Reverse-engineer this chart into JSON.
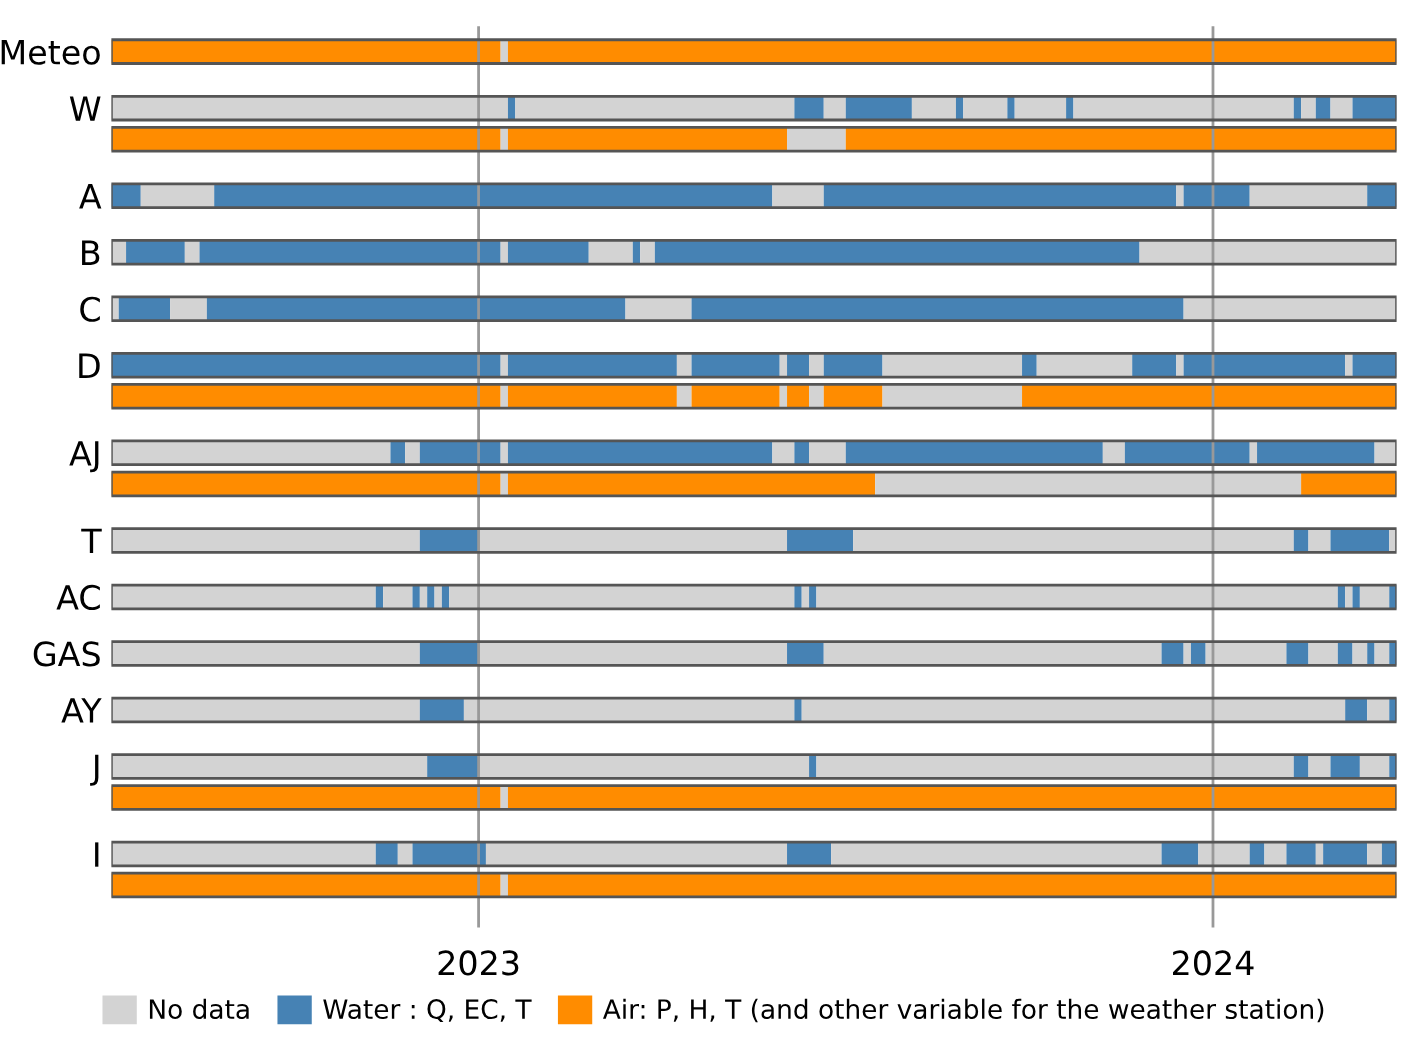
{
  "chart_data": {
    "type": "bar",
    "orientation": "horizontal",
    "categories": [
      "Meteo",
      "W",
      null,
      "A",
      "B",
      "C",
      "D",
      null,
      "AJ",
      null,
      "T",
      "AC",
      "GAS",
      "AY",
      "J",
      null,
      "I",
      null
    ],
    "xlim": [
      2022.5,
      2024.25
    ],
    "xticks": [
      2023,
      2024
    ],
    "grid": "x",
    "legend": "bottom",
    "series": [
      {
        "name": "No data",
        "color": "#d3d3d3",
        "values": [
          null,
          null,
          null,
          null,
          null,
          null,
          null,
          null,
          null,
          null,
          null,
          null,
          null,
          null,
          null,
          null,
          null,
          null
        ]
      },
      {
        "name": "Water : Q, EC, T",
        "color": "#4682b4",
        "values": [
          null,
          null,
          null,
          null,
          null,
          null,
          null,
          null,
          null,
          null,
          null,
          null,
          null,
          null,
          null,
          null,
          null,
          null
        ]
      },
      {
        "name": "Air: P, H, T (and other variable for the weather station)",
        "color": "#ff8c00",
        "values": [
          null,
          null,
          null,
          null,
          null,
          null,
          null,
          null,
          null,
          null,
          null,
          null,
          null,
          null,
          null,
          null,
          null,
          null
        ]
      },
      {
        "base": [
          2022.5,
          2022.5,
          2022.5,
          2022.5,
          2022.5,
          2022.5,
          2022.5,
          2022.5,
          2022.5,
          2022.5,
          2022.5,
          2022.5,
          2022.5,
          2022.5,
          2022.5,
          2022.5,
          2022.5,
          2022.5
        ],
        "values": [
          0.53,
          0.54,
          0.53,
          0.04,
          0.02,
          0.01,
          0.53,
          0.53,
          0.38,
          0.53,
          0.42,
          0.36,
          0.42,
          0.42,
          0.43,
          0.53,
          0.36,
          0.53
        ],
        "colors": [
          "#ff8c00",
          "#d3d3d3",
          "#ff8c00",
          "#4682b4",
          "#d3d3d3",
          "#d3d3d3",
          "#4682b4",
          "#ff8c00",
          "#d3d3d3",
          "#ff8c00",
          "#d3d3d3",
          "#d3d3d3",
          "#d3d3d3",
          "#d3d3d3",
          "#d3d3d3",
          "#ff8c00",
          "#d3d3d3",
          "#ff8c00"
        ]
      },
      {
        "base": [
          2023.03,
          2023.04,
          2023.03,
          2022.54,
          2022.52,
          2022.51,
          2023.03,
          2023.03,
          2022.88,
          2023.03,
          2022.92,
          2022.86,
          2022.92,
          2022.92,
          2022.93,
          2023.03,
          2022.86,
          2023.03
        ],
        "values": [
          0.01,
          0.01,
          0.01,
          0.1,
          0.08,
          0.07,
          0.01,
          0.01,
          0.02,
          0.01,
          0.08,
          0.01,
          0.08,
          0.06,
          0.07,
          0.01,
          0.03,
          0.01
        ],
        "colors": [
          "#d3d3d3",
          "#4682b4",
          "#d3d3d3",
          "#d3d3d3",
          "#4682b4",
          "#4682b4",
          "#d3d3d3",
          "#d3d3d3",
          "#4682b4",
          "#d3d3d3",
          "#4682b4",
          "#4682b4",
          "#4682b4",
          "#4682b4",
          "#4682b4",
          "#d3d3d3",
          "#4682b4",
          "#d3d3d3"
        ]
      },
      {
        "base": [
          2023.04,
          2023.05,
          2023.04,
          2022.64,
          2022.6,
          2022.58,
          2023.04,
          2023.04,
          2022.9,
          2023.04,
          2023.0,
          2022.87,
          2023.0,
          2022.98,
          2023.0,
          2023.04,
          2022.89,
          2023.04
        ],
        "values": [
          1.21,
          0.38,
          0.38,
          0.76,
          0.02,
          0.05,
          0.23,
          0.23,
          0.02,
          0.5,
          0.42,
          0.04,
          0.42,
          0.45,
          0.45,
          1.21,
          0.02,
          1.21
        ],
        "colors": [
          "#ff8c00",
          "#d3d3d3",
          "#ff8c00",
          "#4682b4",
          "#d3d3d3",
          "#d3d3d3",
          "#4682b4",
          "#ff8c00",
          "#d3d3d3",
          "#ff8c00",
          "#d3d3d3",
          "#d3d3d3",
          "#d3d3d3",
          "#d3d3d3",
          "#d3d3d3",
          "#ff8c00",
          "#d3d3d3",
          "#ff8c00"
        ]
      },
      {
        "base": [
          null,
          2023.43,
          2023.42,
          2023.4,
          2022.62,
          2022.63,
          2023.27,
          2023.27,
          2022.92,
          2023.54,
          2023.42,
          2022.91,
          2023.42,
          2023.43,
          2023.45,
          null,
          2022.91,
          null
        ],
        "values": [
          null,
          0.04,
          0.08,
          0.07,
          0.41,
          0.57,
          0.02,
          0.02,
          0.11,
          0.58,
          0.09,
          0.01,
          0.05,
          0.01,
          0.01,
          null,
          0.1,
          null
        ],
        "colors": [
          null,
          "#4682b4",
          "#d3d3d3",
          "#d3d3d3",
          "#4682b4",
          "#4682b4",
          "#d3d3d3",
          "#d3d3d3",
          "#4682b4",
          "#d3d3d3",
          "#4682b4",
          "#4682b4",
          "#4682b4",
          "#4682b4",
          "#4682b4",
          null,
          "#4682b4",
          null
        ]
      },
      {
        "base": [
          null,
          2023.47,
          2023.5,
          2023.47,
          2023.03,
          2023.2,
          2023.29,
          2023.29,
          2023.03,
          2024.12,
          2023.51,
          2022.92,
          2023.47,
          2023.44,
          2023.46,
          null,
          2023.01,
          null
        ],
        "values": [
          null,
          0.03,
          0.75,
          0.48,
          0.01,
          0.09,
          0.12,
          0.12,
          0.01,
          0.13,
          0.6,
          0.01,
          0.46,
          0.74,
          0.65,
          null,
          0.41,
          null
        ],
        "colors": [
          null,
          "#d3d3d3",
          "#ff8c00",
          "#4682b4",
          "#d3d3d3",
          "#d3d3d3",
          "#4682b4",
          "#ff8c00",
          "#d3d3d3",
          "#ff8c00",
          "#d3d3d3",
          "#d3d3d3",
          "#d3d3d3",
          "#d3d3d3",
          "#d3d3d3",
          null,
          "#d3d3d3",
          null
        ]
      },
      {
        "base": [
          null,
          2023.5,
          null,
          2023.95,
          2023.04,
          2023.29,
          2023.41,
          2023.41,
          2023.04,
          null,
          2024.11,
          2022.93,
          2023.93,
          2024.18,
          2024.11,
          null,
          2023.42,
          null
        ],
        "values": [
          null,
          0.09,
          null,
          0.01,
          0.11,
          0.67,
          0.01,
          0.01,
          0.36,
          null,
          0.02,
          0.01,
          0.03,
          0.03,
          0.02,
          null,
          0.06,
          null
        ],
        "colors": [
          null,
          "#4682b4",
          null,
          "#d3d3d3",
          "#4682b4",
          "#4682b4",
          "#d3d3d3",
          "#d3d3d3",
          "#4682b4",
          null,
          "#4682b4",
          "#4682b4",
          "#4682b4",
          "#4682b4",
          "#4682b4",
          null,
          "#4682b4",
          null
        ]
      },
      {
        "base": [
          null,
          2023.59,
          null,
          2023.96,
          2023.15,
          2023.96,
          2023.42,
          2023.42,
          2023.4,
          null,
          2024.13,
          2022.94,
          2023.96,
          2024.21,
          2024.13,
          null,
          2023.48,
          null
        ],
        "values": [
          null,
          0.06,
          null,
          0.09,
          0.06,
          0.29,
          0.03,
          0.03,
          0.03,
          null,
          0.03,
          0.01,
          0.01,
          0.03,
          0.03,
          null,
          0.45,
          null
        ],
        "colors": [
          null,
          "#d3d3d3",
          null,
          "#4682b4",
          "#d3d3d3",
          "#d3d3d3",
          "#4682b4",
          "#ff8c00",
          "#d3d3d3",
          null,
          "#d3d3d3",
          "#d3d3d3",
          "#d3d3d3",
          "#d3d3d3",
          "#d3d3d3",
          null,
          "#d3d3d3",
          null
        ]
      },
      {
        "base": [
          null,
          2023.65,
          null,
          2024.05,
          2023.21,
          null,
          2023.45,
          2023.45,
          2023.43,
          null,
          2024.16,
          2022.95,
          2023.97,
          2024.24,
          2024.16,
          null,
          2023.93,
          null
        ],
        "values": [
          null,
          0.01,
          null,
          0.16,
          0.01,
          null,
          0.02,
          0.02,
          0.02,
          null,
          0.08,
          0.01,
          0.02,
          0.01,
          0.04,
          null,
          0.05,
          null
        ],
        "colors": [
          null,
          "#4682b4",
          null,
          "#d3d3d3",
          "#4682b4",
          null,
          "#d3d3d3",
          "#d3d3d3",
          "#4682b4",
          null,
          "#4682b4",
          "#4682b4",
          "#4682b4",
          "#4682b4",
          "#4682b4",
          null,
          "#4682b4",
          null
        ]
      },
      {
        "base": [
          null,
          2023.66,
          null,
          2024.21,
          2023.22,
          null,
          2023.47,
          2023.47,
          2023.45,
          null,
          2024.24,
          2022.96,
          2023.99,
          null,
          2024.2,
          null,
          2023.98,
          null
        ],
        "values": [
          null,
          0.06,
          null,
          0.04,
          0.02,
          null,
          0.08,
          0.08,
          0.05,
          null,
          0.01,
          0.47,
          0.11,
          null,
          0.04,
          null,
          0.07,
          null
        ],
        "colors": [
          null,
          "#d3d3d3",
          null,
          "#4682b4",
          "#d3d3d3",
          null,
          "#4682b4",
          "#ff8c00",
          "#d3d3d3",
          null,
          "#d3d3d3",
          "#d3d3d3",
          "#d3d3d3",
          null,
          "#d3d3d3",
          null,
          "#d3d3d3",
          null
        ]
      },
      {
        "base": [
          null,
          2023.72,
          null,
          null,
          2023.24,
          null,
          2023.55,
          2023.55,
          2023.5,
          null,
          null,
          2023.43,
          2024.1,
          null,
          2024.24,
          null,
          2024.05,
          null
        ],
        "values": [
          null,
          0.01,
          null,
          null,
          0.66,
          null,
          0.19,
          0.19,
          0.35,
          null,
          null,
          0.01,
          0.03,
          null,
          0.01,
          null,
          0.02,
          null
        ],
        "colors": [
          null,
          "#4682b4",
          null,
          null,
          "#4682b4",
          null,
          "#d3d3d3",
          "#d3d3d3",
          "#4682b4",
          null,
          null,
          "#4682b4",
          "#4682b4",
          null,
          "#4682b4",
          null,
          "#4682b4",
          null
        ]
      },
      {
        "base": [
          null,
          2023.73,
          null,
          null,
          2023.9,
          null,
          2023.74,
          2023.74,
          2023.85,
          null,
          null,
          2023.44,
          2024.13,
          null,
          null,
          null,
          2024.07,
          null
        ],
        "values": [
          null,
          0.07,
          null,
          null,
          0.35,
          null,
          0.02,
          0.51,
          0.03,
          null,
          null,
          0.01,
          0.04,
          null,
          null,
          null,
          0.03,
          null
        ],
        "colors": [
          null,
          "#d3d3d3",
          null,
          null,
          "#d3d3d3",
          null,
          "#4682b4",
          "#ff8c00",
          "#d3d3d3",
          null,
          null,
          "#d3d3d3",
          "#d3d3d3",
          null,
          null,
          null,
          "#d3d3d3",
          null
        ]
      },
      {
        "base": [
          null,
          2023.8,
          null,
          null,
          null,
          null,
          2023.76,
          null,
          2023.88,
          null,
          null,
          2023.45,
          2024.17,
          null,
          null,
          null,
          2024.1,
          null
        ],
        "values": [
          null,
          0.01,
          null,
          null,
          null,
          null,
          0.13,
          null,
          0.17,
          null,
          null,
          0.01,
          0.02,
          null,
          null,
          null,
          0.04,
          null
        ],
        "colors": [
          null,
          "#4682b4",
          null,
          null,
          null,
          null,
          "#d3d3d3",
          null,
          "#4682b4",
          null,
          null,
          "#4682b4",
          "#4682b4",
          null,
          null,
          null,
          "#4682b4",
          null
        ]
      },
      {
        "base": [
          null,
          2023.81,
          null,
          null,
          null,
          null,
          2023.89,
          null,
          2024.05,
          null,
          null,
          2023.46,
          2024.19,
          null,
          null,
          null,
          2024.14,
          null
        ],
        "values": [
          null,
          0.3,
          null,
          null,
          null,
          null,
          0.06,
          null,
          0.01,
          null,
          null,
          0.71,
          0.02,
          null,
          null,
          null,
          0.01,
          null
        ],
        "colors": [
          null,
          "#d3d3d3",
          null,
          null,
          null,
          null,
          "#4682b4",
          null,
          "#d3d3d3",
          null,
          null,
          "#d3d3d3",
          "#d3d3d3",
          null,
          null,
          null,
          "#d3d3d3",
          null
        ]
      },
      {
        "base": [
          null,
          2024.11,
          null,
          null,
          null,
          null,
          2023.95,
          null,
          2024.06,
          null,
          null,
          2024.17,
          2024.21,
          null,
          null,
          null,
          2024.15,
          null
        ],
        "values": [
          null,
          0.01,
          null,
          null,
          null,
          null,
          0.01,
          null,
          0.16,
          null,
          null,
          0.01,
          0.01,
          null,
          null,
          null,
          0.06,
          null
        ],
        "colors": [
          null,
          "#4682b4",
          null,
          null,
          null,
          null,
          "#d3d3d3",
          null,
          "#4682b4",
          null,
          null,
          "#4682b4",
          "#4682b4",
          null,
          null,
          null,
          "#4682b4",
          null
        ]
      },
      {
        "base": [
          null,
          2024.12,
          null,
          null,
          null,
          null,
          2023.96,
          null,
          2024.22,
          null,
          null,
          2024.18,
          2024.22,
          null,
          null,
          null,
          2024.21,
          null
        ],
        "values": [
          null,
          0.02,
          null,
          null,
          null,
          null,
          0.22,
          null,
          0.03,
          null,
          null,
          0.01,
          0.02,
          null,
          null,
          null,
          0.02,
          null
        ],
        "colors": [
          null,
          "#d3d3d3",
          null,
          null,
          null,
          null,
          "#4682b4",
          null,
          "#d3d3d3",
          null,
          null,
          "#d3d3d3",
          "#d3d3d3",
          null,
          null,
          null,
          "#d3d3d3",
          null
        ]
      },
      {
        "base": [
          null,
          2024.14,
          null,
          null,
          null,
          null,
          2024.18,
          null,
          null,
          null,
          null,
          2024.19,
          2024.24,
          null,
          null,
          null,
          2024.23,
          null
        ],
        "values": [
          null,
          0.02,
          null,
          null,
          null,
          null,
          0.01,
          null,
          null,
          null,
          null,
          0.01,
          0.01,
          null,
          null,
          null,
          0.02,
          null
        ],
        "colors": [
          null,
          "#4682b4",
          null,
          null,
          null,
          null,
          "#d3d3d3",
          null,
          null,
          null,
          null,
          "#4682b4",
          "#4682b4",
          null,
          null,
          null,
          "#4682b4",
          null
        ]
      },
      {
        "base": [
          null,
          2024.16,
          null,
          null,
          null,
          null,
          2024.19,
          null,
          null,
          null,
          null,
          2024.2,
          null,
          null,
          null,
          null,
          null,
          null
        ],
        "values": [
          null,
          0.03,
          null,
          null,
          null,
          null,
          0.06,
          null,
          null,
          null,
          null,
          0.04,
          null,
          null,
          null,
          null,
          null,
          null
        ],
        "colors": [
          null,
          "#d3d3d3",
          null,
          null,
          null,
          null,
          "#4682b4",
          null,
          null,
          null,
          null,
          "#d3d3d3",
          null,
          null,
          null,
          null,
          null,
          null
        ]
      },
      {
        "base": [
          null,
          2024.19,
          null,
          null,
          null,
          null,
          null,
          null,
          null,
          null,
          null,
          2024.24,
          null,
          null,
          null,
          null,
          null,
          null
        ],
        "values": [
          null,
          0.06,
          null,
          null,
          null,
          null,
          null,
          null,
          null,
          null,
          null,
          0.01,
          null,
          null,
          null,
          null,
          null,
          null
        ],
        "colors": [
          null,
          "#4682b4",
          null,
          null,
          null,
          null,
          null,
          null,
          null,
          null,
          null,
          "#4682b4",
          null,
          null,
          null,
          null,
          null,
          null
        ]
      }
    ]
  }
}
